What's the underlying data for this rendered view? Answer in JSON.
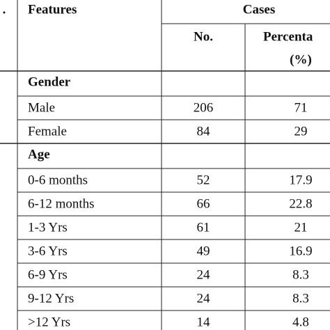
{
  "header": {
    "first": ".",
    "features": "Features",
    "cases": "Cases",
    "no": "No.",
    "percent": [
      "Percenta",
      "(%)"
    ]
  },
  "sections": [
    {
      "title": "Gender",
      "rows": [
        [
          "Male",
          "206",
          "71"
        ],
        [
          "Female",
          "84",
          "29"
        ]
      ]
    },
    {
      "title": "Age",
      "rows": [
        [
          "0-6 months",
          "52",
          "17.9"
        ],
        [
          "6-12 months",
          "66",
          "22.8"
        ],
        [
          "1-3 Yrs",
          "61",
          "21"
        ],
        [
          "3-6 Yrs",
          "49",
          "16.9"
        ],
        [
          "6-9 Yrs",
          "24",
          "8.3"
        ],
        [
          "9-12 Yrs",
          "24",
          "8.3"
        ],
        [
          ">12 Yrs",
          "14",
          "4.8"
        ]
      ]
    }
  ]
}
